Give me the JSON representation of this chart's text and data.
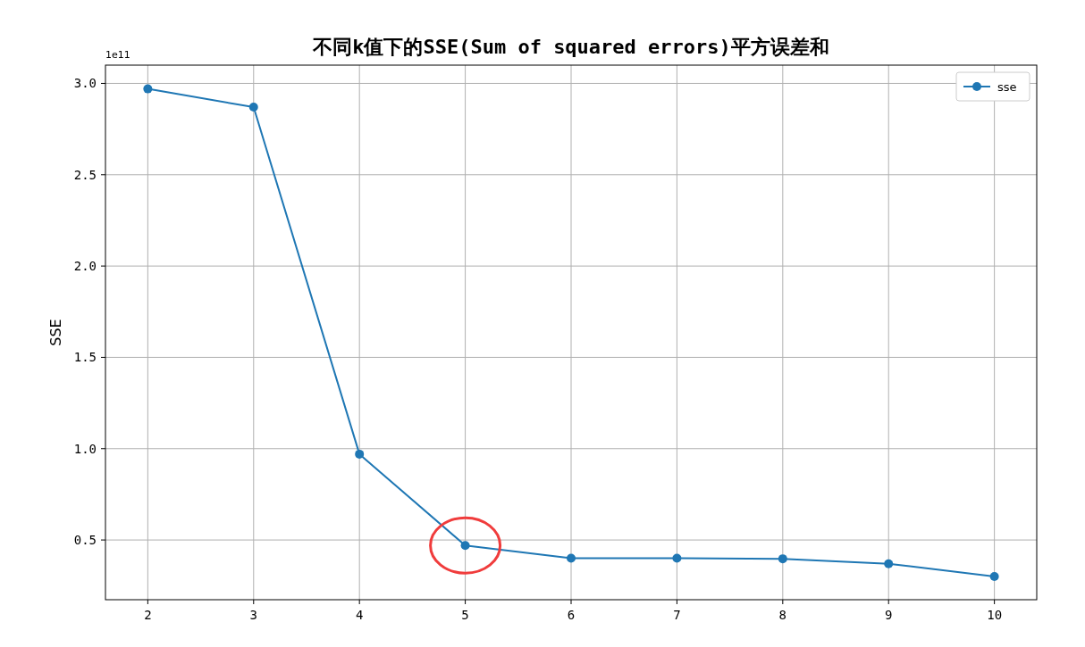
{
  "chart_data": {
    "type": "line",
    "title": "不同k值下的SSE(Sum of squared errors)平方误差和",
    "ylabel": "SSE",
    "x": [
      2,
      3,
      4,
      5,
      6,
      7,
      8,
      9,
      10
    ],
    "series": [
      {
        "name": "sse",
        "color": "#1f77b4",
        "values": [
          2.97,
          2.87,
          0.97,
          0.47,
          0.4,
          0.4,
          0.397,
          0.37,
          0.3
        ]
      }
    ],
    "xlim": [
      1.6,
      10.4
    ],
    "ylim": [
      0.173,
      3.1
    ],
    "xticks": [
      2,
      3,
      4,
      5,
      6,
      7,
      8,
      9,
      10
    ],
    "yticks": [
      {
        "value": 0.5,
        "label": "0.5"
      },
      {
        "value": 1,
        "label": "1.0"
      },
      {
        "value": 1.5,
        "label": "1.5"
      },
      {
        "value": 2,
        "label": "2.0"
      },
      {
        "value": 2.5,
        "label": "2.5"
      },
      {
        "value": 3,
        "label": "3.0"
      }
    ],
    "annotations": [
      "1e11"
    ],
    "grid": true,
    "legend": "top right",
    "marker": "circle",
    "line_style": "solid"
  }
}
